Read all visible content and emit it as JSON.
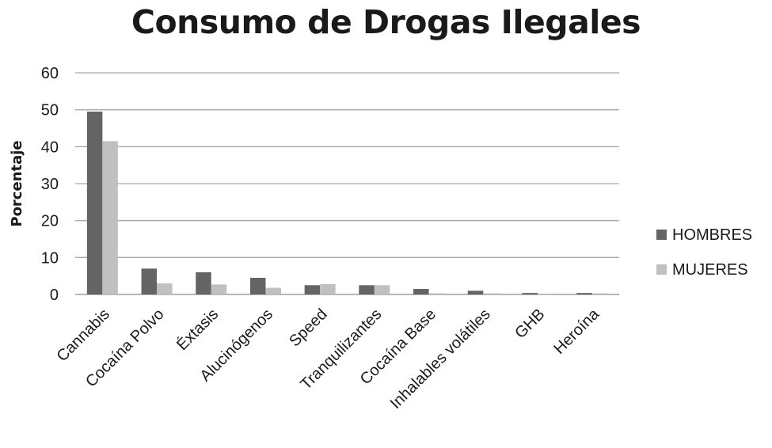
{
  "chart_data": {
    "type": "bar",
    "title": "Consumo de Drogas Ilegales",
    "xlabel": "",
    "ylabel": "Porcentaje",
    "ylim": [
      0,
      60
    ],
    "yticks": [
      0,
      10,
      20,
      30,
      40,
      50,
      60
    ],
    "grid": true,
    "legend_position": "right",
    "categories": [
      "Cannabis",
      "Cocaína Polvo",
      "Éxtasis",
      "Alucinógenos",
      "Speed",
      "Tranquilizantes",
      "Cocaína Base",
      "Inhalables volátiles",
      "GHB",
      "Heroína"
    ],
    "series": [
      {
        "name": "HOMBRES",
        "color": "#646464",
        "values": [
          49.5,
          7,
          6,
          4.5,
          2.5,
          2.5,
          1.5,
          1,
          0.4,
          0.4
        ]
      },
      {
        "name": "MUJERES",
        "color": "#c0c0c0",
        "values": [
          41.5,
          3,
          2.7,
          1.8,
          2.8,
          2.5,
          0.3,
          0.3,
          0.2,
          0.3
        ]
      }
    ]
  }
}
